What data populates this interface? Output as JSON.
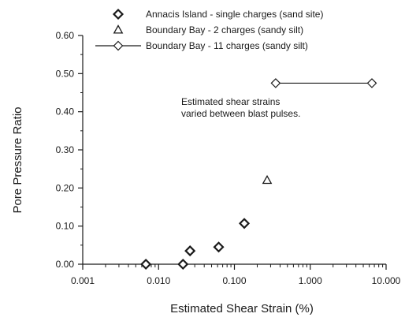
{
  "chart_data": {
    "type": "scatter",
    "xlabel": "Estimated Shear Strain (%)",
    "ylabel": "Pore Pressure Ratio",
    "x_scale": "log",
    "xlim": [
      0.001,
      10.0
    ],
    "ylim": [
      0.0,
      0.6
    ],
    "x_ticks": [
      "0.001",
      "0.010",
      "0.100",
      "1.000",
      "10.000"
    ],
    "x_tick_values": [
      0.001,
      0.01,
      0.1,
      1.0,
      10.0
    ],
    "y_ticks": [
      "0.00",
      "0.10",
      "0.20",
      "0.30",
      "0.40",
      "0.50",
      "0.60"
    ],
    "y_tick_values": [
      0.0,
      0.1,
      0.2,
      0.3,
      0.4,
      0.5,
      0.6
    ],
    "grid": false,
    "legend_position": "top",
    "series": [
      {
        "name": "Annacis Island - single charges (sand site)",
        "marker": "diamond-bold",
        "points": [
          {
            "x": 0.0068,
            "y": 0.0
          },
          {
            "x": 0.021,
            "y": 0.0
          },
          {
            "x": 0.026,
            "y": 0.035
          },
          {
            "x": 0.062,
            "y": 0.045
          },
          {
            "x": 0.135,
            "y": 0.107
          }
        ]
      },
      {
        "name": "Boundary Bay - 2 charges (sandy silt)",
        "marker": "triangle",
        "points": [
          {
            "x": 0.27,
            "y": 0.22
          }
        ]
      },
      {
        "name": "Boundary Bay - 11 charges (sandy silt)",
        "marker": "diamond-line",
        "points": [
          {
            "x": 0.35,
            "y": 0.475
          },
          {
            "x": 6.5,
            "y": 0.475
          }
        ]
      }
    ],
    "annotations": [
      "Estimated shear strains",
      "varied between blast pulses."
    ]
  }
}
